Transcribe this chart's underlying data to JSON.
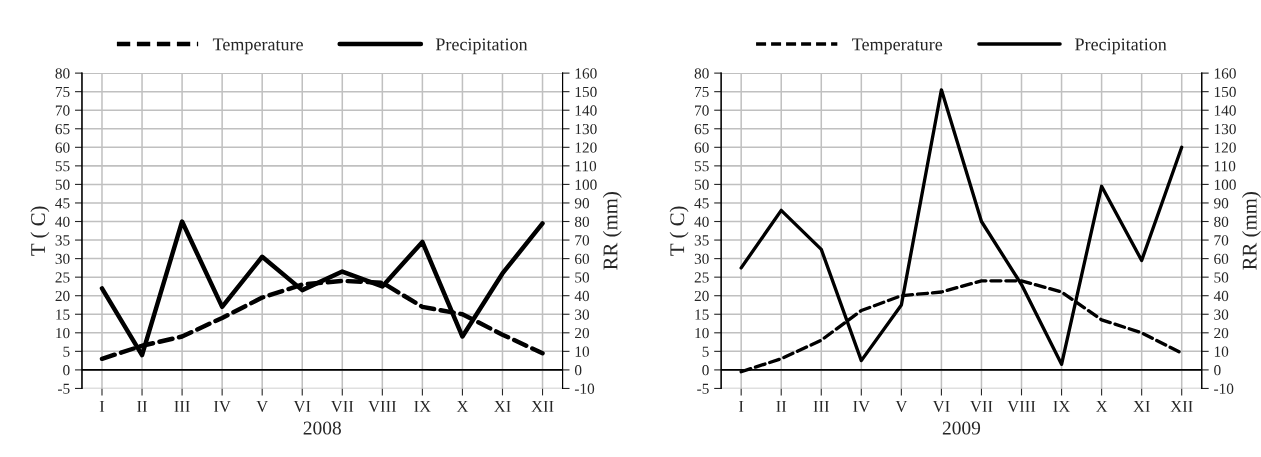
{
  "chart_data": [
    {
      "type": "line",
      "xlabel": "2008",
      "ylabel": "T ( C)",
      "y2label": "RR (mm)",
      "categories": [
        "I",
        "II",
        "III",
        "IV",
        "V",
        "VI",
        "VII",
        "VIII",
        "IX",
        "X",
        "XI",
        "XII"
      ],
      "series": [
        {
          "name": "Temperature",
          "color": "#000000",
          "line_style": "dashed",
          "values": [
            3,
            6.5,
            9,
            14,
            19.5,
            23,
            24,
            23.5,
            17,
            15,
            9.5,
            4.5
          ]
        },
        {
          "name": "Precipitation",
          "color": "#000000",
          "line_style": "solid",
          "axis": "y2",
          "values": [
            44,
            8,
            80,
            34,
            61,
            43,
            53,
            45,
            69,
            18,
            52,
            79
          ]
        }
      ],
      "ylim": [
        -5,
        80
      ],
      "yticks": [
        -5,
        0,
        5,
        10,
        15,
        20,
        25,
        30,
        35,
        40,
        45,
        50,
        55,
        60,
        65,
        70,
        75,
        80
      ],
      "y2lim": [
        -10,
        160
      ],
      "y2ticks": [
        -10,
        0,
        10,
        20,
        30,
        40,
        50,
        60,
        70,
        80,
        90,
        100,
        110,
        120,
        130,
        140,
        150,
        160
      ],
      "grid": true,
      "legend": "top",
      "marker": "none"
    },
    {
      "type": "line",
      "xlabel": "2009",
      "ylabel": "T ( C)",
      "y2label": "RR (mm)",
      "categories": [
        "I",
        "II",
        "III",
        "IV",
        "V",
        "VI",
        "VII",
        "VIII",
        "IX",
        "X",
        "XI",
        "XII"
      ],
      "series": [
        {
          "name": "Temperature",
          "color": "#000000",
          "line_style": "dashed",
          "values": [
            -0.5,
            3,
            8,
            16,
            20,
            21,
            24,
            24,
            21,
            13.5,
            10,
            4.5
          ]
        },
        {
          "name": "Precipitation",
          "color": "#000000",
          "line_style": "solid",
          "axis": "y2",
          "values": [
            55,
            86,
            65,
            5,
            35,
            151,
            80,
            46,
            3,
            99,
            59,
            120
          ]
        }
      ],
      "ylim": [
        -5,
        80
      ],
      "yticks": [
        -5,
        0,
        5,
        10,
        15,
        20,
        25,
        30,
        35,
        40,
        45,
        50,
        55,
        60,
        65,
        70,
        75,
        80
      ],
      "y2lim": [
        -10,
        160
      ],
      "y2ticks": [
        -10,
        0,
        10,
        20,
        30,
        40,
        50,
        60,
        70,
        80,
        90,
        100,
        110,
        120,
        130,
        140,
        150,
        160
      ],
      "grid": true,
      "legend": "top",
      "marker": "none"
    }
  ]
}
